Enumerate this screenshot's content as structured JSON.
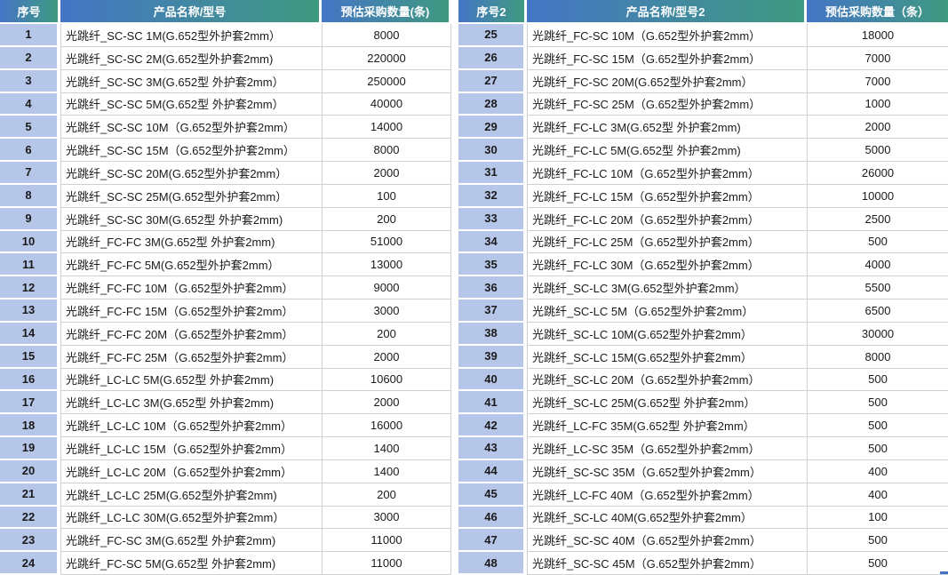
{
  "colors": {
    "header_gradient_start": "#4575C6",
    "header_gradient_end": "#3F9A80",
    "header_text": "#FFFFFF",
    "seq_column_fill": "#B6C6E8",
    "grid_line": "#D0D0D0",
    "selection_handle": "#4472C4"
  },
  "left": {
    "headers": {
      "seq": "序号",
      "product": "产品名称/型号",
      "qty": "预估采购数量(条)"
    },
    "rows": [
      {
        "seq": "1",
        "product": "光跳纤_SC-SC 1M(G.652型外护套2mm）",
        "qty": "8000"
      },
      {
        "seq": "2",
        "product": "光跳纤_SC-SC 2M(G.652型外护套2mm)",
        "qty": "220000"
      },
      {
        "seq": "3",
        "product": "光跳纤_SC-SC 3M(G.652型 外护套2mm）",
        "qty": "250000"
      },
      {
        "seq": "4",
        "product": "光跳纤_SC-SC 5M(G.652型 外护套2mm）",
        "qty": "40000"
      },
      {
        "seq": "5",
        "product": "光跳纤_SC-SC 10M（G.652型外护套2mm）",
        "qty": "14000"
      },
      {
        "seq": "6",
        "product": "光跳纤_SC-SC 15M（G.652型外护套2mm）",
        "qty": "8000"
      },
      {
        "seq": "7",
        "product": "光跳纤_SC-SC 20M(G.652型外护套2mm）",
        "qty": "2000"
      },
      {
        "seq": "8",
        "product": "光跳纤_SC-SC 25M(G.652型外护套2mm）",
        "qty": "100"
      },
      {
        "seq": "9",
        "product": "光跳纤_SC-SC 30M(G.652型 外护套2mm)",
        "qty": "200"
      },
      {
        "seq": "10",
        "product": "光跳纤_FC-FC 3M(G.652型 外护套2mm)",
        "qty": "51000"
      },
      {
        "seq": "11",
        "product": "光跳纤_FC-FC 5M(G.652型外护套2mm）",
        "qty": "13000"
      },
      {
        "seq": "12",
        "product": "光跳纤_FC-FC 10M（G.652型外护套2mm）",
        "qty": "9000"
      },
      {
        "seq": "13",
        "product": "光跳纤_FC-FC 15M（G.652型外护套2mm）",
        "qty": "3000"
      },
      {
        "seq": "14",
        "product": "光跳纤_FC-FC 20M（G.652型外护套2mm）",
        "qty": "200"
      },
      {
        "seq": "15",
        "product": "光跳纤_FC-FC 25M（G.652型外护套2mm）",
        "qty": "2000"
      },
      {
        "seq": "16",
        "product": "光跳纤_LC-LC 5M(G.652型 外护套2mm)",
        "qty": "10600"
      },
      {
        "seq": "17",
        "product": "光跳纤_LC-LC 3M(G.652型 外护套2mm)",
        "qty": "2000"
      },
      {
        "seq": "18",
        "product": "光跳纤_LC-LC 10M（G.652型外护套2mm）",
        "qty": "16000"
      },
      {
        "seq": "19",
        "product": "光跳纤_LC-LC 15M（G.652型外护套2mm）",
        "qty": "1400"
      },
      {
        "seq": "20",
        "product": "光跳纤_LC-LC 20M（G.652型外护套2mm）",
        "qty": "1400"
      },
      {
        "seq": "21",
        "product": "光跳纤_LC-LC 25M(G.652型外护套2mm)",
        "qty": "200"
      },
      {
        "seq": "22",
        "product": "光跳纤_LC-LC 30M(G.652型外护套2mm）",
        "qty": "3000"
      },
      {
        "seq": "23",
        "product": "光跳纤_FC-SC 3M(G.652型 外护套2mm)",
        "qty": "11000"
      },
      {
        "seq": "24",
        "product": "光跳纤_FC-SC 5M(G.652型 外护套2mm)",
        "qty": "11000"
      }
    ]
  },
  "right": {
    "headers": {
      "seq": "序号2",
      "product": "产品名称/型号2",
      "qty": "预估采购数量（条）"
    },
    "rows": [
      {
        "seq": "25",
        "product": "光跳纤_FC-SC 10M（G.652型外护套2mm）",
        "qty": "18000"
      },
      {
        "seq": "26",
        "product": "光跳纤_FC-SC 15M（G.652型外护套2mm）",
        "qty": "7000"
      },
      {
        "seq": "27",
        "product": "光跳纤_FC-SC 20M(G.652型外护套2mm）",
        "qty": "7000"
      },
      {
        "seq": "28",
        "product": "光跳纤_FC-SC 25M（G.652型外护套2mm）",
        "qty": "1000"
      },
      {
        "seq": "29",
        "product": "光跳纤_FC-LC 3M(G.652型 外护套2mm)",
        "qty": "2000"
      },
      {
        "seq": "30",
        "product": "光跳纤_FC-LC 5M(G.652型 外护套2mm)",
        "qty": "5000"
      },
      {
        "seq": "31",
        "product": "光跳纤_FC-LC 10M（G.652型外护套2mm）",
        "qty": "26000"
      },
      {
        "seq": "32",
        "product": "光跳纤_FC-LC 15M（G.652型外护套2mm）",
        "qty": "10000"
      },
      {
        "seq": "33",
        "product": "光跳纤_FC-LC 20M（G.652型外护套2mm）",
        "qty": "2500"
      },
      {
        "seq": "34",
        "product": "光跳纤_FC-LC 25M（G.652型外护套2mm）",
        "qty": "500"
      },
      {
        "seq": "35",
        "product": "光跳纤_FC-LC 30M（G.652型外护套2mm）",
        "qty": "4000"
      },
      {
        "seq": "36",
        "product": "光跳纤_SC-LC 3M(G.652型外护套2mm）",
        "qty": "5500"
      },
      {
        "seq": "37",
        "product": "光跳纤_SC-LC 5M（G.652型外护套2mm）",
        "qty": "6500"
      },
      {
        "seq": "38",
        "product": "光跳纤_SC-LC 10M(G.652型外护套2mm）",
        "qty": "30000"
      },
      {
        "seq": "39",
        "product": "光跳纤_SC-LC 15M(G.652型外护套2mm）",
        "qty": "8000"
      },
      {
        "seq": "40",
        "product": "光跳纤_SC-LC 20M（G.652型外护套2mm）",
        "qty": "500"
      },
      {
        "seq": "41",
        "product": "光跳纤_SC-LC 25M(G.652型 外护套2mm）",
        "qty": "500"
      },
      {
        "seq": "42",
        "product": "光跳纤_LC-FC 35M(G.652型 外护套2mm）",
        "qty": "500"
      },
      {
        "seq": "43",
        "product": "光跳纤_LC-SC 35M（G.652型外护套2mm）",
        "qty": "500"
      },
      {
        "seq": "44",
        "product": "光跳纤_SC-SC 35M（G.652型外护套2mm）",
        "qty": "400"
      },
      {
        "seq": "45",
        "product": "光跳纤_LC-FC 40M（G.652型外护套2mm）",
        "qty": "400"
      },
      {
        "seq": "46",
        "product": "光跳纤_SC-LC 40M(G.652型外护套2mm）",
        "qty": "100"
      },
      {
        "seq": "47",
        "product": "光跳纤_SC-SC 40M（G.652型外护套2mm）",
        "qty": "500"
      },
      {
        "seq": "48",
        "product": "光跳纤_SC-SC 45M（G.652型外护套2mm）",
        "qty": "500"
      }
    ]
  }
}
